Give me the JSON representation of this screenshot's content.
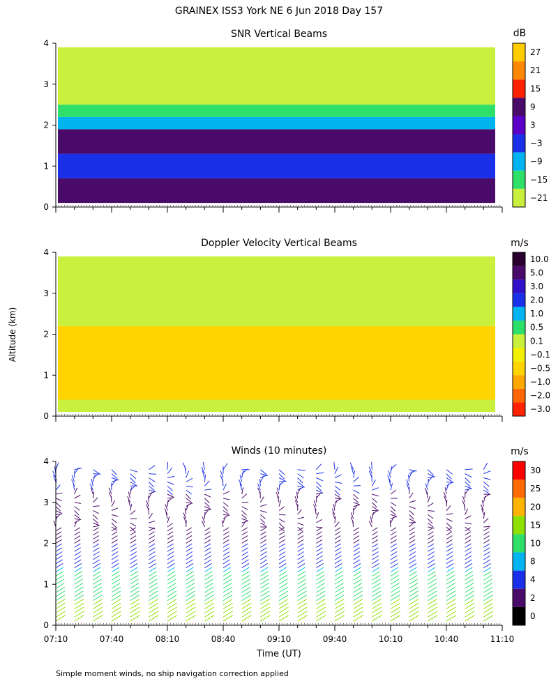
{
  "figure": {
    "title": "GRAINEX ISS3 York NE   6 Jun 2018 Day 157",
    "footnote": "Simple moment winds, no ship navigation correction applied",
    "shared_ylabel": "Altitude (km)",
    "xlabel": "Time (UT)"
  },
  "chart_data": [
    {
      "type": "heatmap",
      "title": "SNR Vertical Beams",
      "x_ticks": [],
      "y_ticks": [
        "0",
        "1",
        "2",
        "3",
        "4"
      ],
      "ylim": [
        0,
        4
      ],
      "colorbar": {
        "unit": "dB",
        "labels": [
          "27",
          "21",
          "15",
          "9",
          "3",
          "−3",
          "−9",
          "−15",
          "−21"
        ],
        "colors": [
          "#ffcc00",
          "#ff8800",
          "#ff2200",
          "#4a0a6a",
          "#5a00c8",
          "#1a30e8",
          "#00b4f0",
          "#2ee06a",
          "#c8f03c"
        ]
      },
      "layers": [
        {
          "y_range": [
            0.1,
            0.7
          ],
          "color": "#4a0a6a"
        },
        {
          "y_range": [
            0.7,
            1.3
          ],
          "color": "#1a30e8"
        },
        {
          "y_range": [
            1.3,
            1.9
          ],
          "color": "#4a0a6a"
        },
        {
          "y_range": [
            1.9,
            2.2
          ],
          "color": "#00b4f0"
        },
        {
          "y_range": [
            2.2,
            2.5
          ],
          "color": "#2ee06a"
        },
        {
          "y_range": [
            2.5,
            3.9
          ],
          "color": "#c8f03c"
        }
      ]
    },
    {
      "type": "heatmap",
      "title": "Doppler Velocity Vertical Beams",
      "x_ticks": [],
      "y_ticks": [
        "0",
        "1",
        "2",
        "3",
        "4"
      ],
      "ylim": [
        0,
        4
      ],
      "colorbar": {
        "unit": "m/s",
        "labels": [
          "10.0",
          "5.0",
          "3.0",
          "2.0",
          "1.0",
          "0.5",
          "0.1",
          "−0.1",
          "−0.5",
          "−1.0",
          "−2.0",
          "−3.0"
        ],
        "colors": [
          "#2a0030",
          "#4a0a6a",
          "#3010c8",
          "#1a30e8",
          "#00b4f0",
          "#2ee06a",
          "#c8f03c",
          "#f0f000",
          "#ffd400",
          "#ffa800",
          "#ff6600",
          "#ff2200"
        ]
      },
      "layers": [
        {
          "y_range": [
            0.1,
            0.4
          ],
          "color": "#c8f03c"
        },
        {
          "y_range": [
            0.4,
            2.2
          ],
          "color": "#ffd400"
        },
        {
          "y_range": [
            2.2,
            3.9
          ],
          "color": "#c8f03c"
        }
      ]
    },
    {
      "type": "scatter",
      "title": "Winds (10 minutes)",
      "x_ticks": [
        "07:10",
        "07:40",
        "08:10",
        "08:40",
        "09:10",
        "09:40",
        "10:10",
        "10:40",
        "11:10"
      ],
      "y_ticks": [
        "0",
        "1",
        "2",
        "3",
        "4"
      ],
      "ylim": [
        0,
        4
      ],
      "colorbar": {
        "unit": "m/s",
        "labels": [
          "30",
          "25",
          "20",
          "15",
          "10",
          "8",
          "4",
          "2",
          "0"
        ],
        "colors": [
          "#ff0000",
          "#ff6a00",
          "#ffb400",
          "#8ee000",
          "#2ee06a",
          "#00b4f0",
          "#1a30e8",
          "#4a0a6a",
          "#000000"
        ]
      },
      "profile_times_min": [
        430,
        440,
        450,
        460,
        470,
        480,
        490,
        500,
        510,
        520,
        530,
        540,
        550,
        560,
        570,
        580,
        590,
        600,
        610,
        620,
        630,
        640,
        650,
        660
      ],
      "speed_profile": [
        {
          "alt_km": 0.2,
          "speed_ms": 16
        },
        {
          "alt_km": 0.8,
          "speed_ms": 14
        },
        {
          "alt_km": 1.2,
          "speed_ms": 10
        },
        {
          "alt_km": 1.6,
          "speed_ms": 6
        },
        {
          "alt_km": 2.2,
          "speed_ms": 3
        },
        {
          "alt_km": 3.0,
          "speed_ms": 3
        },
        {
          "alt_km": 3.8,
          "speed_ms": 6
        }
      ]
    }
  ]
}
